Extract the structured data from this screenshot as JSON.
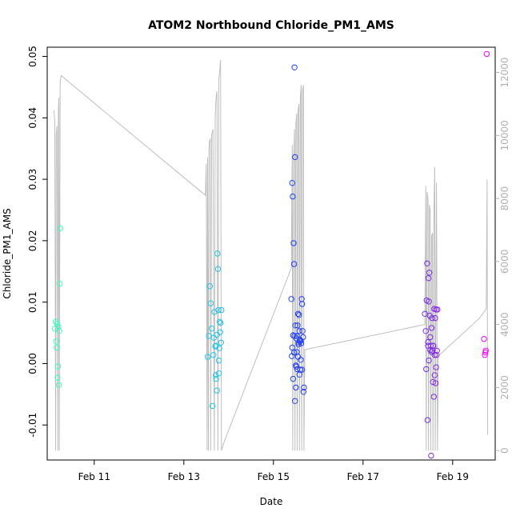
{
  "chart_data": {
    "type": "scatter",
    "title": "ATOM2 Northbound Chloride_PM1_AMS",
    "xlabel": "Date",
    "ylabel": "Chloride_PM1_AMS",
    "x_unit": "day of February 2017",
    "xlim": [
      9.95,
      19.95
    ],
    "ylim": [
      -0.0157,
      0.0515
    ],
    "y_ticks": [
      -0.01,
      0.0,
      0.01,
      0.02,
      0.03,
      0.04,
      0.05
    ],
    "y_tick_labels": [
      "-0.01",
      "0.00",
      "0.01",
      "0.02",
      "0.03",
      "0.04",
      "0.05"
    ],
    "x_ticks": [
      11,
      13,
      15,
      17,
      19
    ],
    "x_tick_labels": [
      "Feb 11",
      "Feb 13",
      "Feb 15",
      "Feb 17",
      "Feb 19"
    ],
    "y2lim": [
      -300,
      12800
    ],
    "y2_ticks": [
      0,
      2000,
      4000,
      6000,
      8000,
      10000,
      12000
    ],
    "y2_tick_labels": [
      "0",
      "2000",
      "4000",
      "6000",
      "8000",
      "10000",
      "12000"
    ],
    "grid": false,
    "legend": "none",
    "colors": {
      "axis": "#000000",
      "secondary_axis": "#b0b0b0",
      "line": "#bebebe",
      "points_start": "#3fffc0",
      "points_mid1": "#1fc8e8",
      "points_mid2": "#1f3ff4",
      "points_mid3": "#7b2ee6",
      "points_end": "#ff00ff"
    },
    "series": [
      {
        "type": "scatter",
        "axis": "left",
        "points": [
          [
            10.12,
            0.0057
          ],
          [
            10.14,
            0.0068
          ],
          [
            10.15,
            0.0036
          ],
          [
            10.16,
            0.0026
          ],
          [
            10.17,
            0.0065
          ],
          [
            10.18,
            -0.0023
          ],
          [
            10.19,
            -0.0005
          ],
          [
            10.2,
            0.006
          ],
          [
            10.21,
            -0.0035
          ],
          [
            10.22,
            0.0053
          ],
          [
            10.23,
            0.013
          ],
          [
            10.24,
            0.022
          ],
          [
            13.53,
            0.0011
          ],
          [
            13.56,
            0.0045
          ],
          [
            13.58,
            0.0126
          ],
          [
            13.6,
            0.0098
          ],
          [
            13.62,
            0.0057
          ],
          [
            13.64,
            -0.0069
          ],
          [
            13.66,
            0.0014
          ],
          [
            13.68,
            0.0084
          ],
          [
            13.7,
            0.0028
          ],
          [
            13.71,
            -0.0019
          ],
          [
            13.72,
            0.0029
          ],
          [
            13.74,
            0.0047
          ],
          [
            13.75,
            0.0179
          ],
          [
            13.76,
            0.0154
          ],
          [
            13.77,
            0.0087
          ],
          [
            13.78,
            -0.0016
          ],
          [
            13.79,
            0.0025
          ],
          [
            13.8,
            0.0068
          ],
          [
            13.81,
            0.0051
          ],
          [
            13.82,
            0.0066
          ],
          [
            13.83,
            0.0034
          ],
          [
            13.84,
            0.0087
          ],
          [
            13.72,
            -0.0025
          ],
          [
            13.74,
            -0.0044
          ],
          [
            13.78,
            0.0005
          ],
          [
            13.67,
            0.0042
          ],
          [
            15.4,
            0.0105
          ],
          [
            15.41,
            0.0012
          ],
          [
            15.42,
            0.0294
          ],
          [
            15.43,
            0.0272
          ],
          [
            15.44,
            0.0046
          ],
          [
            15.45,
            0.0196
          ],
          [
            15.46,
            0.0162
          ],
          [
            15.47,
            0.0482
          ],
          [
            15.48,
            0.0336
          ],
          [
            15.49,
            0.0062
          ],
          [
            15.5,
            -0.0003
          ],
          [
            15.51,
            0.0041
          ],
          [
            15.52,
            0.0019
          ],
          [
            15.53,
            -0.0009
          ],
          [
            15.54,
            0.0062
          ],
          [
            15.55,
            0.0081
          ],
          [
            15.56,
            0.0031
          ],
          [
            15.57,
            0.0079
          ],
          [
            15.58,
            0.0053
          ],
          [
            15.59,
            0.0036
          ],
          [
            15.6,
            -0.001
          ],
          [
            15.61,
            0.0006
          ],
          [
            15.62,
            0.0033
          ],
          [
            15.63,
            0.0105
          ],
          [
            15.64,
            0.0097
          ],
          [
            15.65,
            0.0053
          ],
          [
            15.66,
            0.0043
          ],
          [
            15.67,
            -0.0046
          ],
          [
            15.68,
            -0.0039
          ],
          [
            15.42,
            0.0026
          ],
          [
            15.44,
            -0.0025
          ],
          [
            15.46,
            0.0018
          ],
          [
            15.48,
            -0.0061
          ],
          [
            15.5,
            -0.0039
          ],
          [
            15.52,
            0.0045
          ],
          [
            15.55,
            0.0011
          ],
          [
            15.58,
            -0.0018
          ],
          [
            15.61,
            0.0037
          ],
          [
            15.64,
            -0.001
          ],
          [
            15.47,
            0.0045
          ],
          [
            15.51,
            -0.0005
          ],
          [
            15.56,
            0.0034
          ],
          [
            15.59,
            0.0039
          ],
          [
            18.38,
            0.0081
          ],
          [
            18.4,
            0.0053
          ],
          [
            18.41,
            -0.0009
          ],
          [
            18.42,
            0.0103
          ],
          [
            18.43,
            0.0163
          ],
          [
            18.44,
            -0.0092
          ],
          [
            18.45,
            0.0029
          ],
          [
            18.46,
            0.0139
          ],
          [
            18.47,
            0.0101
          ],
          [
            18.48,
            0.0148
          ],
          [
            18.49,
            0.0078
          ],
          [
            18.5,
            0.0043
          ],
          [
            18.51,
            0.0029
          ],
          [
            18.52,
            -0.015
          ],
          [
            18.53,
            0.0058
          ],
          [
            18.54,
            0.0074
          ],
          [
            18.55,
            0.0021
          ],
          [
            18.56,
            -0.003
          ],
          [
            18.57,
            0.0029
          ],
          [
            18.58,
            -0.0054
          ],
          [
            18.59,
            0.0089
          ],
          [
            18.6,
            -0.0019
          ],
          [
            18.61,
            0.0074
          ],
          [
            18.62,
            -0.0032
          ],
          [
            18.63,
            0.0088
          ],
          [
            18.64,
            0.0014
          ],
          [
            18.65,
            0.0021
          ],
          [
            18.66,
            0.0088
          ],
          [
            18.45,
            0.0035
          ],
          [
            18.47,
            0.0005
          ],
          [
            18.5,
            0.0022
          ],
          [
            18.53,
            0.0019
          ],
          [
            18.56,
            0.0029
          ],
          [
            18.6,
            0.0014
          ],
          [
            18.63,
            -0.0006
          ],
          [
            19.7,
            0.004
          ],
          [
            19.72,
            0.0014
          ],
          [
            19.74,
            0.0021
          ],
          [
            19.76,
            0.0504
          ],
          [
            19.73,
            0.0018
          ]
        ]
      },
      {
        "type": "line",
        "axis": "right",
        "points": [
          [
            10.1,
            10800
          ],
          [
            10.12,
            10400
          ],
          [
            10.14,
            0
          ],
          [
            10.15,
            10000
          ],
          [
            10.17,
            10300
          ],
          [
            10.19,
            0
          ],
          [
            10.2,
            10800
          ],
          [
            10.21,
            11200
          ],
          [
            10.22,
            0
          ],
          [
            10.24,
            11700
          ],
          [
            10.26,
            11900
          ],
          [
            13.48,
            8100
          ],
          [
            13.5,
            9100
          ],
          [
            13.52,
            0
          ],
          [
            13.53,
            9300
          ],
          [
            13.55,
            0
          ],
          [
            13.56,
            9500
          ],
          [
            13.57,
            9800
          ],
          [
            13.59,
            9900
          ],
          [
            13.6,
            0
          ],
          [
            13.62,
            10000
          ],
          [
            13.65,
            10200
          ],
          [
            13.68,
            0
          ],
          [
            13.7,
            10600
          ],
          [
            13.72,
            11200
          ],
          [
            13.74,
            11400
          ],
          [
            13.76,
            0
          ],
          [
            13.78,
            11800
          ],
          [
            13.8,
            12000
          ],
          [
            13.82,
            12400
          ],
          [
            13.84,
            0
          ],
          [
            13.88,
            200
          ],
          [
            15.4,
            5800
          ],
          [
            15.42,
            9700
          ],
          [
            15.43,
            0
          ],
          [
            15.45,
            9200
          ],
          [
            15.47,
            10200
          ],
          [
            15.48,
            0
          ],
          [
            15.5,
            10400
          ],
          [
            15.52,
            10700
          ],
          [
            15.53,
            0
          ],
          [
            15.55,
            10800
          ],
          [
            15.57,
            11000
          ],
          [
            15.58,
            0
          ],
          [
            15.6,
            11200
          ],
          [
            15.62,
            11600
          ],
          [
            15.63,
            0
          ],
          [
            15.65,
            11400
          ],
          [
            15.67,
            11600
          ],
          [
            15.68,
            0
          ],
          [
            15.7,
            3200
          ],
          [
            18.38,
            4000
          ],
          [
            18.4,
            8400
          ],
          [
            18.41,
            0
          ],
          [
            18.43,
            8200
          ],
          [
            18.45,
            8000
          ],
          [
            18.46,
            0
          ],
          [
            18.48,
            7800
          ],
          [
            18.5,
            7600
          ],
          [
            18.51,
            0
          ],
          [
            18.53,
            6800
          ],
          [
            18.55,
            6900
          ],
          [
            18.56,
            0
          ],
          [
            18.58,
            7400
          ],
          [
            18.6,
            9000
          ],
          [
            18.61,
            0
          ],
          [
            18.64,
            8500
          ],
          [
            18.66,
            0
          ],
          [
            18.68,
            3000
          ],
          [
            19.6,
            4200
          ],
          [
            19.75,
            4500
          ],
          [
            19.77,
            8600
          ],
          [
            19.78,
            500
          ]
        ]
      }
    ]
  }
}
